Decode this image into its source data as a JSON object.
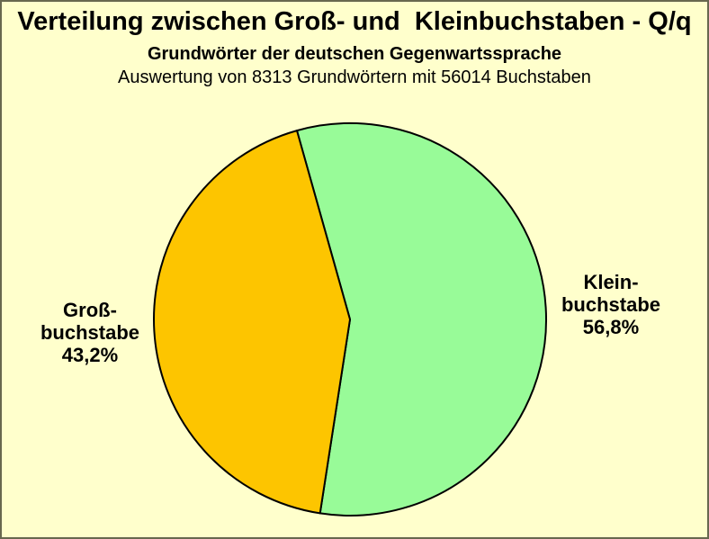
{
  "colors": {
    "background": "#FFFFCC",
    "frame_border": "#68684F",
    "slice_outline": "#000000",
    "text": "#000000"
  },
  "labels": {
    "gross": {
      "lines": [
        "Groß-",
        "buchstabe",
        "43,2%"
      ]
    },
    "klein": {
      "lines": [
        "Klein-",
        "buchstabe",
        "56,8%"
      ]
    }
  },
  "chart_data": {
    "type": "pie",
    "title": "Verteilung zwischen Groß- und  Kleinbuchstaben - Q/q",
    "subtitle": "Grundwörter der deutschen Gegenwartssprache",
    "subtitle2": "Auswertung von 8313 Grundwörtern mit 56014 Buchstaben",
    "start_angle_deg": -15.7,
    "direction": "clockwise",
    "legend": "none",
    "counts_shown_in_subtitle": {
      "grundwoerter": 8313,
      "buchstaben": 56014
    },
    "slices": [
      {
        "name": "Kleinbuchstabe",
        "value_pct": 56.8,
        "display_value": "56,8%",
        "color": "#98FB98"
      },
      {
        "name": "Großbuchstabe",
        "value_pct": 43.2,
        "display_value": "43,2%",
        "color": "#FDC500"
      }
    ]
  }
}
